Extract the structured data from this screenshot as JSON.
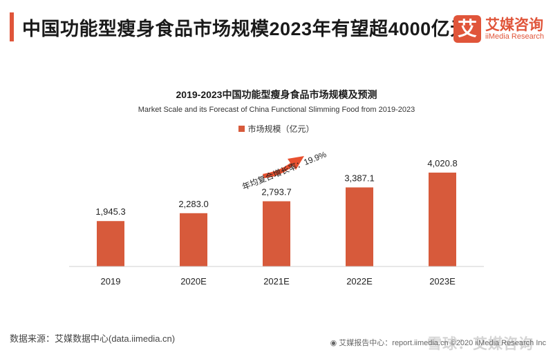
{
  "header": {
    "title": "中国功能型瘦身食品市场规模2023年有望超4000亿元"
  },
  "logo": {
    "mark": "艾",
    "cn": "艾媒咨询",
    "en": "iiMedia Research"
  },
  "colors": {
    "accent": "#e0553a",
    "bar": "#d75a3b",
    "arrow": "#e8502f"
  },
  "chart_data": {
    "type": "bar",
    "title": "2019-2023中国功能型瘦身食品市场规模及预测",
    "subtitle": "Market Scale and its Forecast of China Functional Slimming Food from 2019-2023",
    "categories": [
      "2019",
      "2020E",
      "2021E",
      "2022E",
      "2023E"
    ],
    "series": [
      {
        "name": "市场规模（亿元）",
        "values": [
          1945.3,
          2283.0,
          2793.7,
          3387.1,
          4020.8
        ]
      }
    ],
    "value_labels": [
      "1,945.3",
      "2,283.0",
      "2,793.7",
      "3,387.1",
      "4,020.8"
    ],
    "legend": "top-center",
    "grid": false,
    "ylim": [
      0,
      5500
    ],
    "annotation": "年均复合增长率：19.9%"
  },
  "footer": {
    "source": "数据来源：艾媒数据中心(data.iimedia.cn)",
    "report": "艾媒报告中心：report.iimedia.cn  ©2020 iiMedia Research Inc",
    "watermark": "雪球：艾媒咨询"
  }
}
